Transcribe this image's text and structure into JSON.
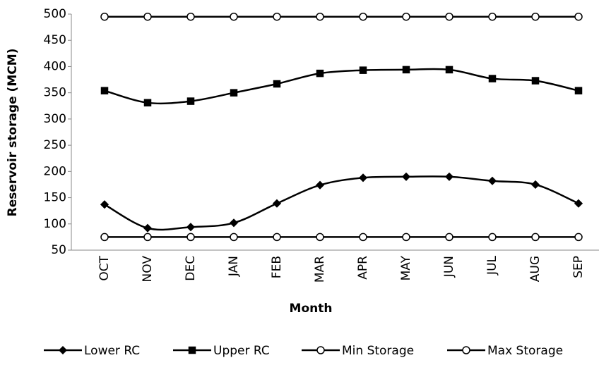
{
  "chart_data": {
    "type": "line",
    "x_label": "Month",
    "y_label": "Reservoir storage (MCM)",
    "categories": [
      "OCT",
      "NOV",
      "DEC",
      "JAN",
      "FEB",
      "MAR",
      "APR",
      "MAY",
      "JUN",
      "JUL",
      "AUG",
      "SEP"
    ],
    "series": [
      {
        "name": "Lower RC",
        "color": "#000000",
        "marker": "diamond",
        "values": [
          137,
          92,
          94,
          102,
          139,
          174,
          188,
          190,
          190,
          182,
          175,
          139
        ]
      },
      {
        "name": "Upper RC",
        "color": "#000000",
        "marker": "square",
        "values": [
          354,
          331,
          334,
          350,
          367,
          387,
          393,
          394,
          394,
          377,
          373,
          354
        ]
      },
      {
        "name": "Min Storage",
        "color": "#000000",
        "marker": "circle",
        "values": [
          75,
          75,
          75,
          75,
          75,
          75,
          75,
          75,
          75,
          75,
          75,
          75
        ]
      },
      {
        "name": "Max Storage",
        "color": "#000000",
        "marker": "circle",
        "values": [
          495,
          495,
          495,
          495,
          495,
          495,
          495,
          495,
          495,
          495,
          495,
          495
        ]
      }
    ],
    "ylim": [
      50,
      500
    ],
    "yticks": [
      50,
      100,
      150,
      200,
      250,
      300,
      350,
      400,
      450,
      500
    ],
    "grid": false,
    "smooth": true,
    "legend": "bottom"
  }
}
